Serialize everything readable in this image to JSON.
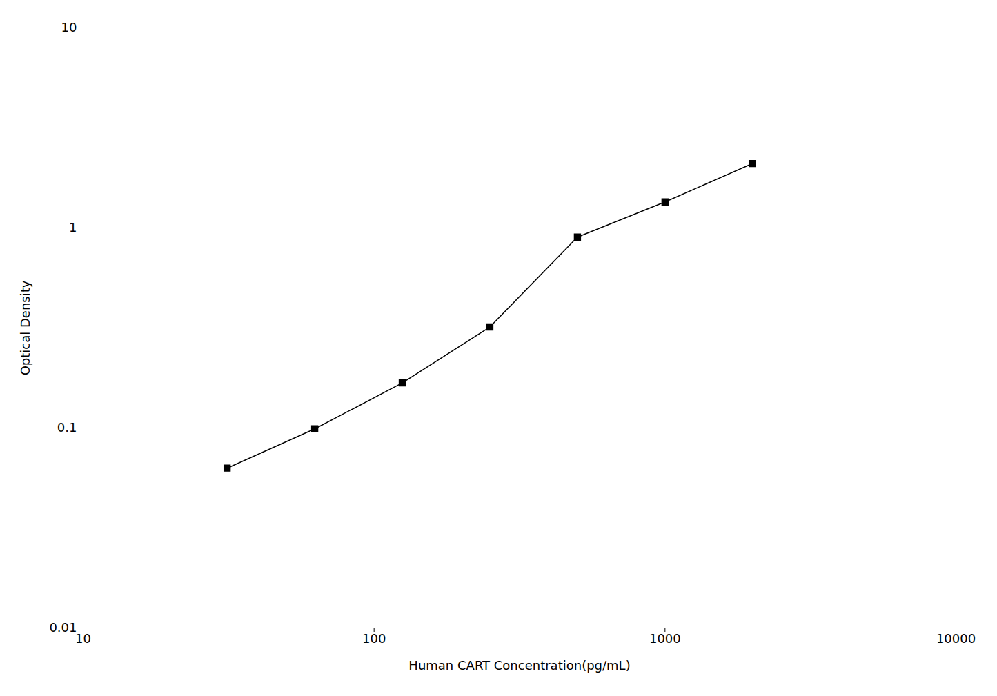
{
  "chart_data": {
    "type": "line",
    "x": [
      31.25,
      62.5,
      125,
      250,
      500,
      1000,
      2000
    ],
    "values": [
      0.063,
      0.099,
      0.168,
      0.32,
      0.9,
      1.35,
      2.1
    ],
    "xlabel": "Human CART Concentration(pg/mL)",
    "ylabel": "Optical Density",
    "xlim": [
      10,
      10000
    ],
    "ylim": [
      0.01,
      10
    ],
    "xticks": [
      10,
      100,
      1000,
      10000
    ],
    "yticks": [
      0.01,
      0.1,
      1,
      10
    ],
    "log": true,
    "grid": false,
    "color": "#000000",
    "marker": "square"
  }
}
